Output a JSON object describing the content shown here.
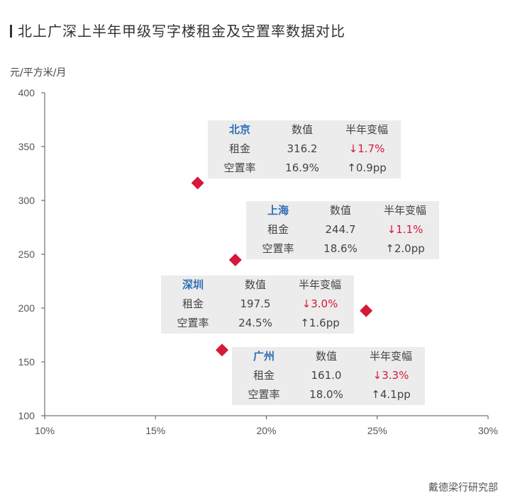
{
  "title": "北上广深上半年甲级写字楼租金及空置率数据对比",
  "source": "戴德梁行研究部",
  "chart_data": {
    "type": "scatter",
    "ylabel": "元/平方米/月",
    "xlabel": "",
    "xlim": [
      0.1,
      0.3
    ],
    "ylim": [
      100,
      400
    ],
    "xticks": [
      "10%",
      "15%",
      "20%",
      "25%",
      "30%"
    ],
    "yticks": [
      "100",
      "150",
      "200",
      "250",
      "300",
      "350",
      "400"
    ],
    "marker_color": "#d6183a",
    "points": [
      {
        "name": "北京",
        "x": 0.169,
        "y": 316.2
      },
      {
        "name": "上海",
        "x": 0.186,
        "y": 244.7
      },
      {
        "name": "深圳",
        "x": 0.245,
        "y": 197.5
      },
      {
        "name": "广州",
        "x": 0.18,
        "y": 161.0
      }
    ],
    "tables": [
      {
        "city": "北京",
        "col2": "数值",
        "col3": "半年变幅",
        "rent_label": "租金",
        "rent": "316.2",
        "rent_change": "↓1.7%",
        "vac_label": "空置率",
        "vacancy": "16.9%",
        "vac_change": "↑0.9pp"
      },
      {
        "city": "上海",
        "col2": "数值",
        "col3": "半年变幅",
        "rent_label": "租金",
        "rent": "244.7",
        "rent_change": "↓1.1%",
        "vac_label": "空置率",
        "vacancy": "18.6%",
        "vac_change": "↑2.0pp"
      },
      {
        "city": "深圳",
        "col2": "数值",
        "col3": "半年变幅",
        "rent_label": "租金",
        "rent": "197.5",
        "rent_change": "↓3.0%",
        "vac_label": "空置率",
        "vacancy": "24.5%",
        "vac_change": "↑1.6pp"
      },
      {
        "city": "广州",
        "col2": "数值",
        "col3": "半年变幅",
        "rent_label": "租金",
        "rent": "161.0",
        "rent_change": "↓3.3%",
        "vac_label": "空置率",
        "vacancy": "18.0%",
        "vac_change": "↑4.1pp"
      }
    ]
  }
}
